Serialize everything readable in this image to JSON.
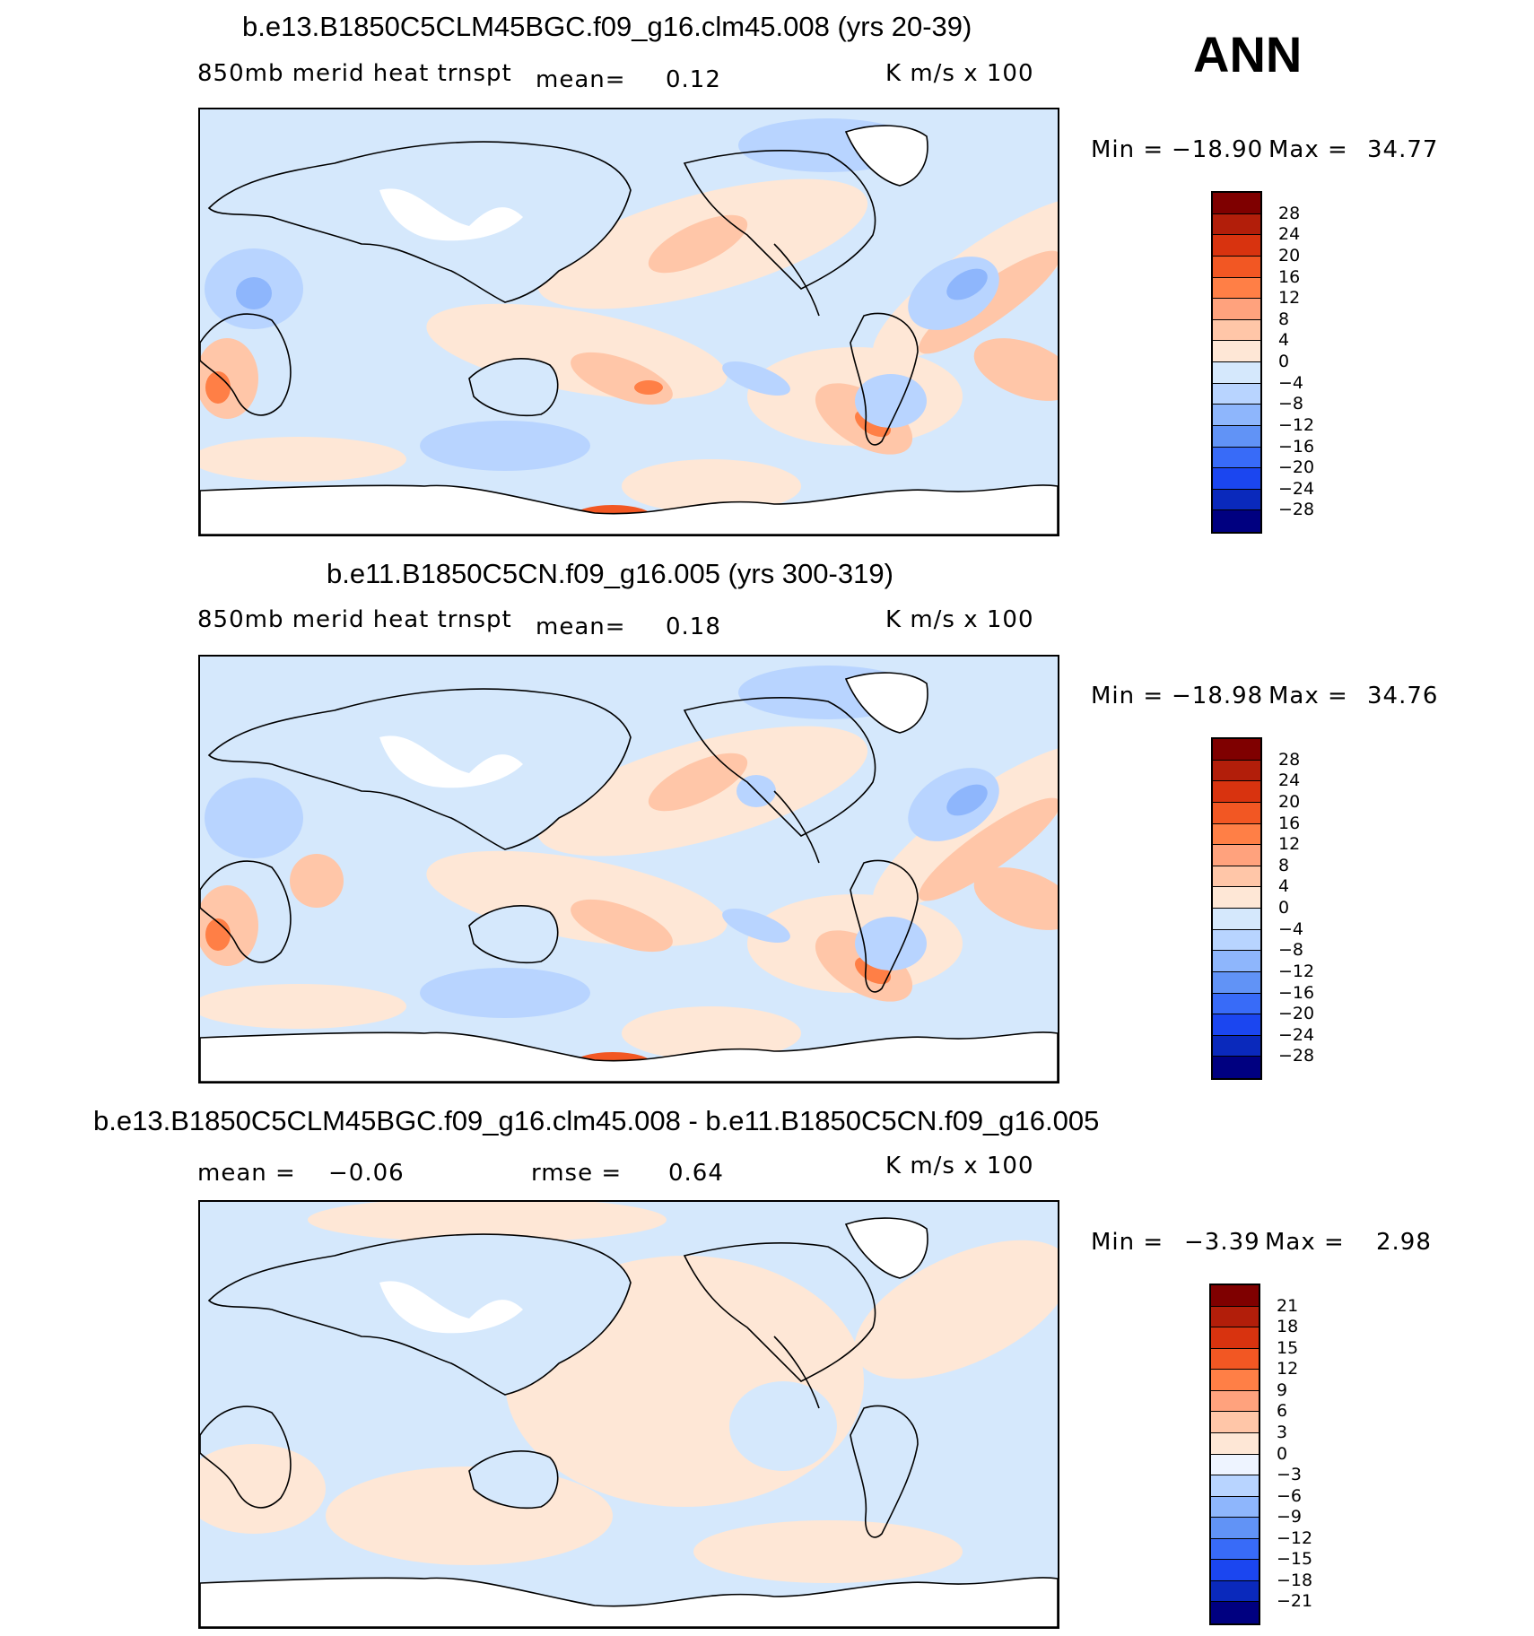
{
  "season": "ANN",
  "colors": {
    "main_scale": [
      "#7f0000",
      "#b21e0a",
      "#d8330f",
      "#f25723",
      "#ff7f46",
      "#ffa27d",
      "#ffc6a8",
      "#fee7d6",
      "#d5e8fc",
      "#b8d4ff",
      "#8eb6fc",
      "#6193f6",
      "#386bf8",
      "#1b46f0",
      "#0a29bc",
      "#000080"
    ],
    "diff_scale": [
      "#7f0000",
      "#b21e0a",
      "#d8330f",
      "#f25723",
      "#ff7f46",
      "#ffa27d",
      "#ffc6a8",
      "#fee7d6",
      "#eef4ff",
      "#b8d4ff",
      "#8eb6fc",
      "#6193f6",
      "#386bf8",
      "#1b46f0",
      "#0a29bc",
      "#000080"
    ],
    "land_missing": "#ffffff",
    "coast": "#000000"
  },
  "panels": [
    {
      "title": "b.e13.B1850C5CLM45BGC.f09_g16.clm45.008 (yrs 20-39)",
      "variable": "850mb  merid  heat  trnspt",
      "mean_label": "mean=",
      "mean_value": "0.12",
      "units": "K  m/s  x  100",
      "min_label": "Min  =",
      "min_value": "−18.90",
      "max_label": "Max  =",
      "max_value": "34.77",
      "ticks": [
        "28",
        "24",
        "20",
        "16",
        "12",
        "8",
        "4",
        "0",
        "−4",
        "−8",
        "−12",
        "−16",
        "−20",
        "−24",
        "−28"
      ]
    },
    {
      "title": "b.e11.B1850C5CN.f09_g16.005 (yrs 300-319)",
      "variable": "850mb  merid  heat  trnspt",
      "mean_label": "mean=",
      "mean_value": "0.18",
      "units": "K  m/s  x  100",
      "min_label": "Min  =",
      "min_value": "−18.98",
      "max_label": "Max  =",
      "max_value": "34.76",
      "ticks": [
        "28",
        "24",
        "20",
        "16",
        "12",
        "8",
        "4",
        "0",
        "−4",
        "−8",
        "−12",
        "−16",
        "−20",
        "−24",
        "−28"
      ]
    },
    {
      "title": "b.e13.B1850C5CLM45BGC.f09_g16.clm45.008 - b.e11.B1850C5CN.f09_g16.005",
      "mean_label": "mean  =",
      "mean_value": "−0.06",
      "rmse_label": "rmse  =",
      "rmse_value": "0.64",
      "units": "K  m/s  x  100",
      "min_label": "Min  =",
      "min_value": "−3.39",
      "max_label": "Max  =",
      "max_value": "2.98",
      "ticks": [
        "21",
        "18",
        "15",
        "12",
        "9",
        "6",
        "3",
        "0",
        "−3",
        "−6",
        "−9",
        "−12",
        "−15",
        "−18",
        "−21"
      ]
    }
  ]
}
